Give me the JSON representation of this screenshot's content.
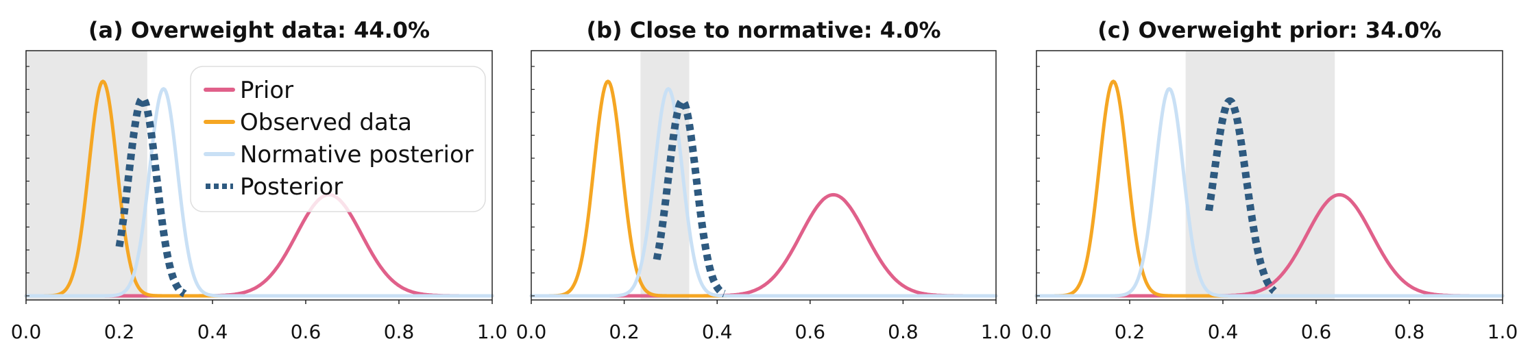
{
  "chart_data": [
    {
      "type": "line",
      "title": "(a) Overweight data: 44.0%",
      "xlim": [
        0.0,
        1.0
      ],
      "ylim": [
        0,
        1
      ],
      "xticks": [
        "0.0",
        "0.2",
        "0.4",
        "0.6",
        "0.8",
        "1.0"
      ],
      "shaded_region": [
        0.0,
        0.26
      ],
      "legend": {
        "placement": "top-center",
        "entries": [
          "Prior",
          "Observed data",
          "Normative posterior",
          "Posterior"
        ]
      },
      "series": [
        {
          "name": "Prior",
          "color": "#e0608a",
          "style": "solid",
          "mean": 0.65,
          "sd": 0.07,
          "peak": 0.41
        },
        {
          "name": "Observed data",
          "color": "#f5a623",
          "style": "solid",
          "mean": 0.165,
          "sd": 0.03,
          "peak": 0.87
        },
        {
          "name": "Normative posterior",
          "color": "#c9e0f5",
          "style": "solid",
          "mean": 0.295,
          "sd": 0.03,
          "peak": 0.84
        },
        {
          "name": "Posterior",
          "color": "#2e5a80",
          "style": "dotted",
          "mean": 0.25,
          "sd": 0.03,
          "peak": 0.8,
          "range": [
            0.2,
            0.34
          ]
        }
      ]
    },
    {
      "type": "line",
      "title": "(b) Close to normative: 4.0%",
      "xlim": [
        0.0,
        1.0
      ],
      "ylim": [
        0,
        1
      ],
      "xticks": [
        "0.0",
        "0.2",
        "0.4",
        "0.6",
        "0.8",
        "1.0"
      ],
      "shaded_region": [
        0.235,
        0.34
      ],
      "series": [
        {
          "name": "Prior",
          "color": "#e0608a",
          "style": "solid",
          "mean": 0.65,
          "sd": 0.07,
          "peak": 0.41
        },
        {
          "name": "Observed data",
          "color": "#f5a623",
          "style": "solid",
          "mean": 0.165,
          "sd": 0.03,
          "peak": 0.87
        },
        {
          "name": "Normative posterior",
          "color": "#c9e0f5",
          "style": "solid",
          "mean": 0.295,
          "sd": 0.03,
          "peak": 0.84
        },
        {
          "name": "Posterior",
          "color": "#2e5a80",
          "style": "dotted",
          "mean": 0.325,
          "sd": 0.03,
          "peak": 0.79,
          "range": [
            0.27,
            0.415
          ]
        }
      ]
    },
    {
      "type": "line",
      "title": "(c) Overweight prior: 34.0%",
      "xlim": [
        0.0,
        1.0
      ],
      "ylim": [
        0,
        1
      ],
      "xticks": [
        "0.0",
        "0.2",
        "0.4",
        "0.6",
        "0.8",
        "1.0"
      ],
      "shaded_region": [
        0.32,
        0.64
      ],
      "series": [
        {
          "name": "Prior",
          "color": "#e0608a",
          "style": "solid",
          "mean": 0.65,
          "sd": 0.07,
          "peak": 0.41
        },
        {
          "name": "Observed data",
          "color": "#f5a623",
          "style": "solid",
          "mean": 0.165,
          "sd": 0.03,
          "peak": 0.87
        },
        {
          "name": "Normative posterior",
          "color": "#c9e0f5",
          "style": "solid",
          "mean": 0.285,
          "sd": 0.03,
          "peak": 0.84
        },
        {
          "name": "Posterior",
          "color": "#2e5a80",
          "style": "dotted",
          "mean": 0.415,
          "sd": 0.035,
          "peak": 0.79,
          "range": [
            0.37,
            0.51
          ]
        }
      ]
    }
  ],
  "colors": {
    "prior": "#e0608a",
    "observed": "#f5a623",
    "normative": "#c9e0f5",
    "posterior": "#2e5a80",
    "shade": "#e8e8e8",
    "baseline": "#cfd8b8"
  }
}
